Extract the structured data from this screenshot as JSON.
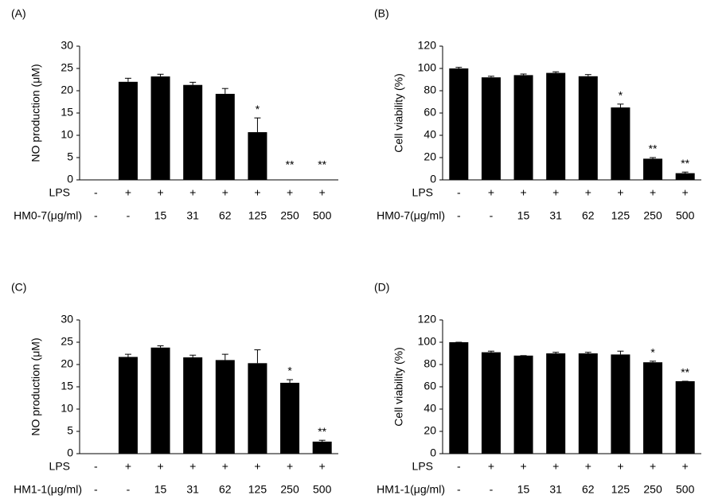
{
  "chart_data": [
    {
      "type": "bar",
      "panel_label": "(A)",
      "ylabel": "NO production (μM)",
      "ylim": [
        0,
        30
      ],
      "yticks": [
        0,
        5,
        10,
        15,
        20,
        25,
        30
      ],
      "lps_label": "LPS",
      "lps": [
        "-",
        "+",
        "+",
        "+",
        "+",
        "+",
        "+",
        "+"
      ],
      "treatment_label": "HM0-7(μg/ml)",
      "categories": [
        "-",
        "-",
        "15",
        "31",
        "62",
        "125",
        "250",
        "500"
      ],
      "values": [
        0,
        22,
        23.2,
        21.3,
        19.3,
        10.7,
        0,
        0
      ],
      "errors": [
        0,
        0.8,
        0.5,
        0.6,
        1.2,
        3.2,
        0,
        0
      ],
      "annotations": [
        null,
        null,
        null,
        null,
        null,
        "*",
        "**",
        "**"
      ],
      "color": "#000000"
    },
    {
      "type": "bar",
      "panel_label": "(B)",
      "ylabel": "Cell viability (%)",
      "ylim": [
        0,
        120
      ],
      "yticks": [
        0,
        20,
        40,
        60,
        80,
        100,
        120
      ],
      "lps_label": "LPS",
      "lps": [
        "-",
        "+",
        "+",
        "+",
        "+",
        "+",
        "+",
        "+"
      ],
      "treatment_label": "HM0-7(μg/ml)",
      "categories": [
        "-",
        "-",
        "15",
        "31",
        "62",
        "125",
        "250",
        "500"
      ],
      "values": [
        100,
        92,
        94,
        96,
        93,
        65,
        19,
        6
      ],
      "errors": [
        1,
        1,
        1,
        1,
        1.5,
        3,
        1,
        1
      ],
      "annotations": [
        null,
        null,
        null,
        null,
        null,
        "*",
        "**",
        "**"
      ],
      "color": "#000000"
    },
    {
      "type": "bar",
      "panel_label": "(C)",
      "ylabel": "NO production (μM)",
      "ylim": [
        0,
        30
      ],
      "yticks": [
        0,
        5,
        10,
        15,
        20,
        25,
        30
      ],
      "lps_label": "LPS",
      "lps": [
        "-",
        "+",
        "+",
        "+",
        "+",
        "+",
        "+",
        "+"
      ],
      "treatment_label": "HM1-1(μg/ml)",
      "categories": [
        "-",
        "-",
        "15",
        "31",
        "62",
        "125",
        "250",
        "500"
      ],
      "values": [
        0,
        21.7,
        23.8,
        21.6,
        21,
        20.3,
        15.9,
        2.7
      ],
      "errors": [
        0,
        0.6,
        0.4,
        0.5,
        1.3,
        3,
        0.7,
        0.3
      ],
      "annotations": [
        null,
        null,
        null,
        null,
        null,
        null,
        "*",
        "**"
      ],
      "color": "#000000"
    },
    {
      "type": "bar",
      "panel_label": "(D)",
      "ylabel": "Cell viability (%)",
      "ylim": [
        0,
        120
      ],
      "yticks": [
        0,
        20,
        40,
        60,
        80,
        100,
        120
      ],
      "lps_label": "LPS",
      "lps": [
        "-",
        "+",
        "+",
        "+",
        "+",
        "+",
        "+",
        "+"
      ],
      "treatment_label": "HM1-1(μg/ml)",
      "categories": [
        "-",
        "-",
        "15",
        "31",
        "62",
        "125",
        "250",
        "500"
      ],
      "values": [
        100,
        91,
        88,
        90,
        90,
        89,
        82,
        65
      ],
      "errors": [
        0,
        1,
        0,
        1,
        1,
        3,
        1,
        0
      ],
      "annotations": [
        null,
        null,
        null,
        null,
        null,
        null,
        "*",
        "**"
      ],
      "color": "#000000"
    }
  ]
}
